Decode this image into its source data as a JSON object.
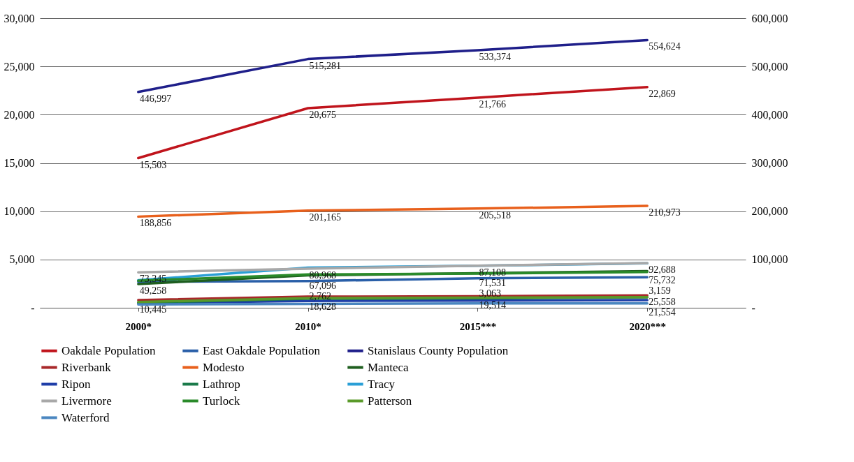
{
  "chart_data": {
    "type": "line",
    "categories": [
      "2000*",
      "2010*",
      "2015***",
      "2020***"
    ],
    "ylim": [
      0,
      30000
    ],
    "yticks": [
      {
        "value": 0,
        "label": "-"
      },
      {
        "value": 5000,
        "label": "5,000"
      },
      {
        "value": 10000,
        "label": "10,000"
      },
      {
        "value": 15000,
        "label": "15,000"
      },
      {
        "value": 20000,
        "label": "20,000"
      },
      {
        "value": 25000,
        "label": "25,000"
      },
      {
        "value": 30000,
        "label": "30,000"
      }
    ],
    "y2lim": [
      0,
      600000
    ],
    "y2ticks": [
      {
        "value": 0,
        "label": "-"
      },
      {
        "value": 100000,
        "label": "100,000"
      },
      {
        "value": 200000,
        "label": "200,000"
      },
      {
        "value": 300000,
        "label": "300,000"
      },
      {
        "value": 400000,
        "label": "400,000"
      },
      {
        "value": 500000,
        "label": "500,000"
      },
      {
        "value": 600000,
        "label": "600,000"
      }
    ],
    "grid": "y",
    "legend": "bottom",
    "series": [
      {
        "name": "Oakdale Population",
        "color": "#c0141c",
        "values": [
          15503,
          20675,
          21766,
          22869
        ],
        "value_labels": [
          "15,503",
          "20,675",
          "21,766",
          "22,869"
        ]
      },
      {
        "name": "East Oakdale Population",
        "color": "#2a5fa8",
        "values": [
          2700,
          2762,
          3063,
          3159
        ],
        "value_labels": [
          null,
          "2,762",
          "3,063",
          "3,159"
        ]
      },
      {
        "name": "Stanislaus County Population",
        "color": "#1f1f8a",
        "axis": "y2",
        "values": [
          446997,
          515281,
          533374,
          554624
        ],
        "value_labels": [
          "446,997",
          "515,281",
          "533,374",
          "554,624"
        ]
      },
      {
        "name": "Riverbank",
        "color": "#a8282a",
        "axis": "y2",
        "values": [
          16000,
          23000,
          24000,
          25558
        ],
        "value_labels": [
          null,
          null,
          null,
          "25,558"
        ]
      },
      {
        "name": "Modesto",
        "color": "#e8601c",
        "axis": "y2",
        "values": [
          188856,
          201165,
          205518,
          210973
        ],
        "value_labels": [
          "188,856",
          "201,165",
          "205,518",
          "210,973"
        ]
      },
      {
        "name": "Manteca",
        "color": "#1e5e1e",
        "axis": "y2",
        "values": [
          49258,
          67096,
          71531,
          75732
        ],
        "value_labels": [
          "49,258",
          "67,096",
          "71,531",
          "75,732"
        ]
      },
      {
        "name": "Ripon",
        "color": "#1f3ea8",
        "axis": "y2",
        "values": [
          10000,
          14000,
          15000,
          16000
        ]
      },
      {
        "name": "Lathrop",
        "color": "#1a7a4a",
        "axis": "y2",
        "values": [
          10445,
          18628,
          19514,
          21554
        ],
        "value_labels": [
          "10,445",
          "18,628",
          "19,514",
          "21,554"
        ]
      },
      {
        "name": "Tracy",
        "color": "#2a9fd6",
        "axis": "y2",
        "values": [
          57000,
          83000,
          87000,
          92000
        ]
      },
      {
        "name": "Livermore",
        "color": "#a8a8a8",
        "axis": "y2",
        "values": [
          73345,
          80968,
          87108,
          92688
        ],
        "value_labels": [
          "73,345",
          "80,968",
          "87,108",
          "92,688"
        ]
      },
      {
        "name": "Turlock",
        "color": "#2a8a2a",
        "axis": "y2",
        "values": [
          56000,
          69000,
          71000,
          74000
        ]
      },
      {
        "name": "Patterson",
        "color": "#5a9a2a",
        "axis": "y2",
        "values": [
          12000,
          20000,
          21000,
          22000
        ]
      },
      {
        "name": "Waterford",
        "color": "#4a86c0",
        "axis": "y2",
        "values": [
          7000,
          8000,
          9000,
          9000
        ]
      }
    ]
  }
}
